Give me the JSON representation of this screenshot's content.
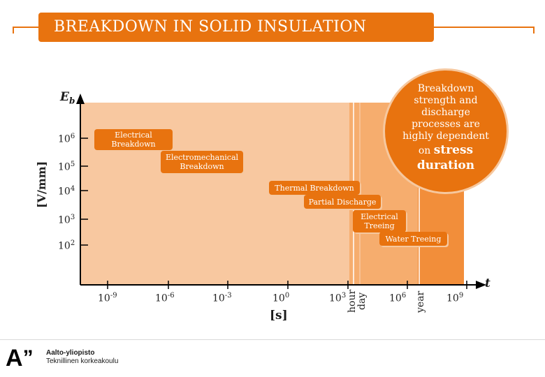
{
  "title": "BREAKDOWN IN SOLID INSULATION",
  "y_axis": {
    "symbol": "E",
    "subscript": "b",
    "unit_label": "[V/mm]",
    "ticks": [
      {
        "base": "10",
        "exp": "6"
      },
      {
        "base": "10",
        "exp": "5"
      },
      {
        "base": "10",
        "exp": "4"
      },
      {
        "base": "10",
        "exp": "3"
      },
      {
        "base": "10",
        "exp": "2"
      }
    ]
  },
  "x_axis": {
    "symbol": "t",
    "unit_label": "[s]",
    "ticks": [
      {
        "base": "10",
        "exp": "-9"
      },
      {
        "base": "10",
        "exp": "-6"
      },
      {
        "base": "10",
        "exp": "-3"
      },
      {
        "base": "10",
        "exp": "0"
      },
      {
        "base": "10",
        "exp": "3"
      },
      {
        "base": "10",
        "exp": "6"
      },
      {
        "base": "10",
        "exp": "9"
      }
    ],
    "markers": {
      "hour": "hour",
      "day": "day",
      "year": "year"
    }
  },
  "mechanisms": [
    {
      "line1": "Electrical",
      "line2": "Breakdown"
    },
    {
      "line1": "Electromechanical",
      "line2": "Breakdown"
    },
    {
      "line1": "Thermal Breakdown",
      "line2": ""
    },
    {
      "line1": "Partial Discharge",
      "line2": ""
    },
    {
      "line1": "Electrical",
      "line2": "Treeing"
    },
    {
      "line1": "Water Treeing",
      "line2": ""
    }
  ],
  "callout": {
    "lines": [
      "Breakdown",
      "strength and",
      "discharge",
      "processes are",
      "highly dependent"
    ],
    "on": "on",
    "emphasis1": "stress",
    "emphasis2": "duration"
  },
  "logo": {
    "mark": "A",
    "quote": "”",
    "name": "Aalto-yliopisto",
    "subtitle": "Teknillinen korkeakoulu"
  },
  "colors": {
    "accent": "#e8730f",
    "band_light": "#f8c8a0",
    "band_mid": "#f6ad6e",
    "band_dark": "#f28e3a"
  }
}
